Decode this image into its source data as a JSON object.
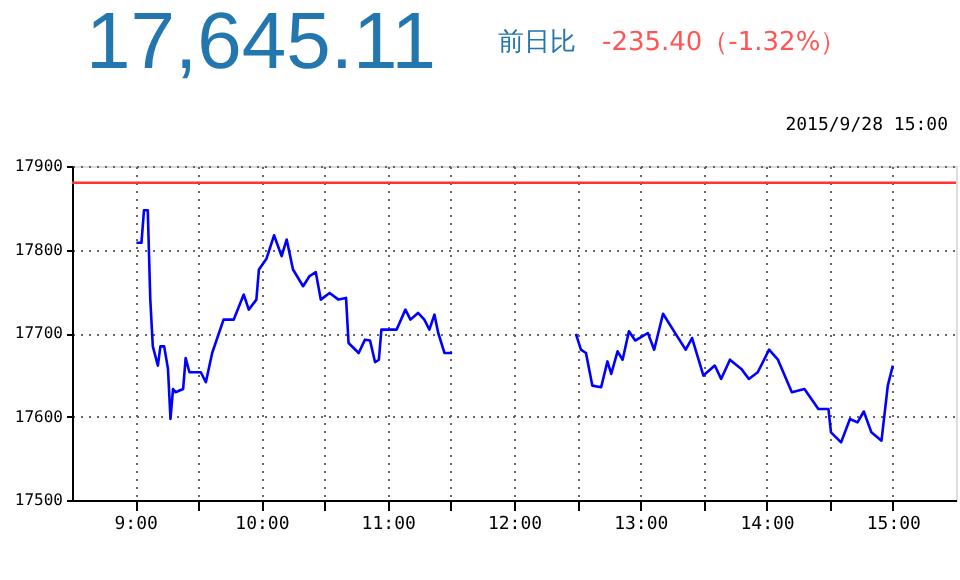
{
  "chart_data": {
    "type": "line",
    "title": "17,645.11",
    "subtitle": "2015/9/28 15:00",
    "annotations": [
      "前日比",
      "-235.40（-1.32%）"
    ],
    "x": [
      9.01,
      9.05,
      9.07,
      9.1,
      9.12,
      9.14,
      9.18,
      9.2,
      9.23,
      9.26,
      9.28,
      9.3,
      9.32,
      9.38,
      9.4,
      9.43,
      9.52,
      9.56,
      9.61,
      9.7,
      9.78,
      9.86,
      9.9,
      9.96,
      9.98,
      10.04,
      10.1,
      10.16,
      10.2,
      10.25,
      10.33,
      10.38,
      10.43,
      10.47,
      10.54,
      10.61,
      10.67,
      10.69,
      10.77,
      10.82,
      10.86,
      10.9,
      10.93,
      10.95,
      11.07,
      11.14,
      11.18,
      11.24,
      11.29,
      11.33,
      11.37,
      11.4,
      11.45,
      11.51,
      12.0,
      12.49,
      12.53,
      12.57,
      12.62,
      12.69,
      12.74,
      12.77,
      12.82,
      12.86,
      12.91,
      12.96,
      13.06,
      13.11,
      13.18,
      13.28,
      13.36,
      13.41,
      13.5,
      13.59,
      13.64,
      13.71,
      13.8,
      13.86,
      13.93,
      14.02,
      14.09,
      14.2,
      14.3,
      14.41,
      14.49,
      14.51,
      14.59,
      14.66,
      14.72,
      14.77,
      14.83,
      14.91,
      14.96,
      15.0
    ],
    "series": [
      {
        "color": "#0000ff",
        "values": [
          17808,
          17808,
          17847,
          17847,
          17740,
          17684,
          17661,
          17684,
          17684,
          17657,
          17597,
          17633,
          17629,
          17633,
          17670,
          17653,
          17653,
          17641,
          17676,
          17716,
          17716,
          17746,
          17728,
          17740,
          17776,
          17789,
          17817,
          17792,
          17812,
          17776,
          17756,
          17768,
          17773,
          17740,
          17748,
          17740,
          17742,
          17688,
          17676,
          17692,
          17691,
          17665,
          17668,
          17704,
          17704,
          17728,
          17716,
          17724,
          17716,
          17704,
          17722,
          17700,
          17676,
          17676,
          null,
          17699,
          17680,
          17676,
          17637,
          17635,
          17666,
          17651,
          17678,
          17668,
          17702,
          17691,
          17700,
          17680,
          17723,
          17699,
          17680,
          17694,
          17649,
          17661,
          17645,
          17668,
          17657,
          17645,
          17653,
          17680,
          17668,
          17629,
          17633,
          17609,
          17609,
          17581,
          17569,
          17597,
          17593,
          17606,
          17581,
          17571,
          17637,
          17661
        ]
      }
    ],
    "xlim": [
      8.5,
      15.5
    ],
    "xticks": [
      {
        "value": 9,
        "label": "9:00"
      },
      {
        "value": 9.5,
        "label": null
      },
      {
        "value": 10,
        "label": "10:00"
      },
      {
        "value": 10.5,
        "label": null
      },
      {
        "value": 11,
        "label": "11:00"
      },
      {
        "value": 11.5,
        "label": null
      },
      {
        "value": 12,
        "label": "12:00"
      },
      {
        "value": 12.5,
        "label": null
      },
      {
        "value": 13,
        "label": "13:00"
      },
      {
        "value": 13.5,
        "label": null
      },
      {
        "value": 14,
        "label": "14:00"
      },
      {
        "value": 14.5,
        "label": null
      },
      {
        "value": 15,
        "label": "15:00"
      }
    ],
    "ylim": [
      17500,
      17900
    ],
    "yticks": [
      17500,
      17600,
      17700,
      17800,
      17900
    ],
    "ref_lines": [
      {
        "axis": "y",
        "value": 17880,
        "color": "#ff3333"
      }
    ],
    "grid": true
  }
}
